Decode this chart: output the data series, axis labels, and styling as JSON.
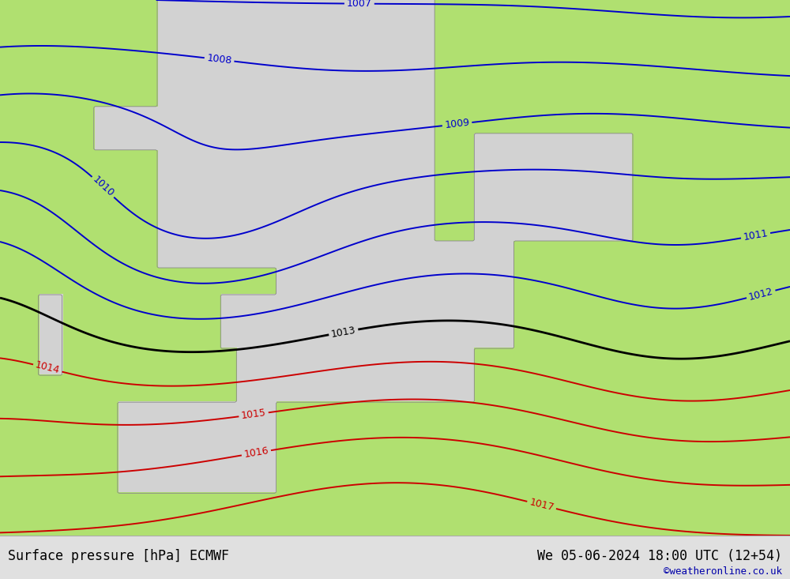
{
  "title_left": "Surface pressure [hPa] ECMWF",
  "title_right": "We 05-06-2024 18:00 UTC (12+54)",
  "credit": "©weatheronline.co.uk",
  "land_color_r": 176,
  "land_color_g": 224,
  "land_color_b": 112,
  "sea_color_r": 210,
  "sea_color_g": 210,
  "sea_color_b": 210,
  "blue_contour_color": "#0000cc",
  "black_contour_color": "#000000",
  "red_contour_color": "#cc0000",
  "coast_color": "#888888",
  "footer_bg": "#e0e0e0",
  "footer_text_color": "#000000",
  "credit_color": "#0000aa",
  "contour_linewidth": 1.4,
  "black_linewidth": 2.0,
  "label_fontsize": 9,
  "blue_levels": [
    1007,
    1008,
    1009,
    1010,
    1011,
    1012
  ],
  "black_levels": [
    1013
  ],
  "red_levels": [
    1014,
    1015,
    1016,
    1017
  ]
}
